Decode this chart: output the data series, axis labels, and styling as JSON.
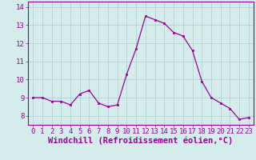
{
  "x": [
    0,
    1,
    2,
    3,
    4,
    5,
    6,
    7,
    8,
    9,
    10,
    11,
    12,
    13,
    14,
    15,
    16,
    17,
    18,
    19,
    20,
    21,
    22,
    23
  ],
  "y": [
    9.0,
    9.0,
    8.8,
    8.8,
    8.6,
    9.2,
    9.4,
    8.7,
    8.5,
    8.6,
    10.3,
    11.7,
    13.5,
    13.3,
    13.1,
    12.6,
    12.4,
    11.6,
    9.9,
    9.0,
    8.7,
    8.4,
    7.8,
    7.9
  ],
  "line_color": "#990099",
  "marker_color": "#990099",
  "bg_color": "#d4ecec",
  "grid_color": "#aacccc",
  "xlabel": "Windchill (Refroidissement éolien,°C)",
  "xlim": [
    -0.5,
    23.5
  ],
  "ylim": [
    7.5,
    14.3
  ],
  "yticks": [
    8,
    9,
    10,
    11,
    12,
    13,
    14
  ],
  "xticks": [
    0,
    1,
    2,
    3,
    4,
    5,
    6,
    7,
    8,
    9,
    10,
    11,
    12,
    13,
    14,
    15,
    16,
    17,
    18,
    19,
    20,
    21,
    22,
    23
  ],
  "tick_color": "#990099",
  "label_color": "#990099",
  "axis_color": "#990099",
  "font_size": 6.5,
  "xlabel_font_size": 7.5
}
